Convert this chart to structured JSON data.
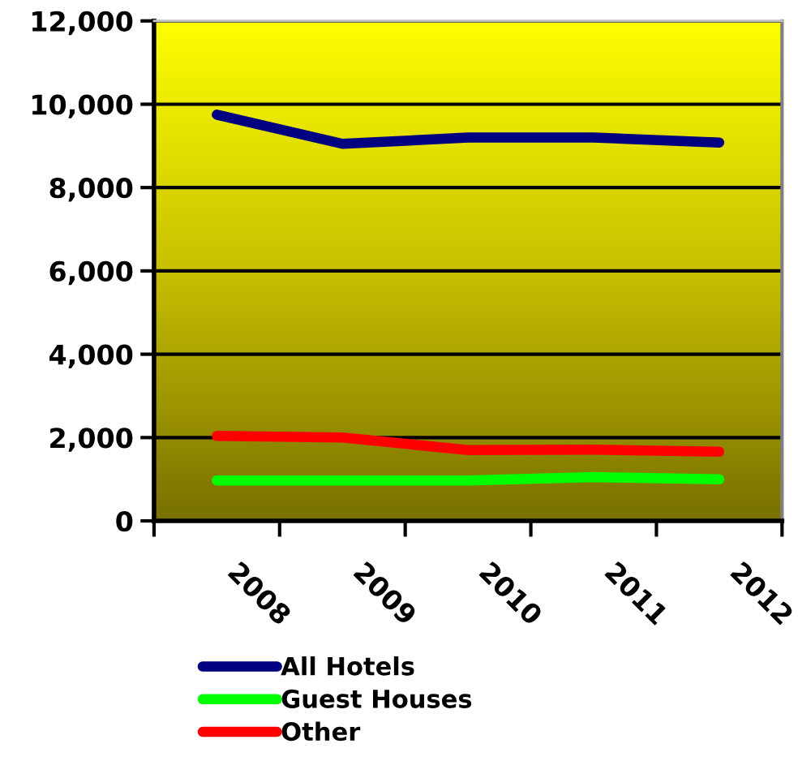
{
  "chart_data": {
    "type": "line",
    "categories": [
      "2008",
      "2009",
      "2010",
      "2011",
      "2012"
    ],
    "series": [
      {
        "name": "All Hotels",
        "color": "#000080",
        "values": [
          9750,
          9050,
          9200,
          9200,
          9080
        ]
      },
      {
        "name": "Guest Houses",
        "color": "#00ff00",
        "values": [
          970,
          970,
          970,
          1050,
          1000
        ]
      },
      {
        "name": "Other",
        "color": "#ff0000",
        "values": [
          2040,
          2000,
          1700,
          1710,
          1660
        ]
      }
    ],
    "ylim": [
      0,
      12000
    ],
    "yticks": [
      0,
      {
        "value": 2000,
        "label": "2,000"
      },
      {
        "value": 4000,
        "label": "4,000"
      },
      {
        "value": 6000,
        "label": "6,000"
      },
      {
        "value": 8000,
        "label": "8,000"
      },
      {
        "value": 10000,
        "label": "10,000"
      },
      {
        "value": 12000,
        "label": "12,000"
      }
    ],
    "grid": "y",
    "legend": "bottom",
    "marker": "none",
    "line_style": "solid"
  }
}
